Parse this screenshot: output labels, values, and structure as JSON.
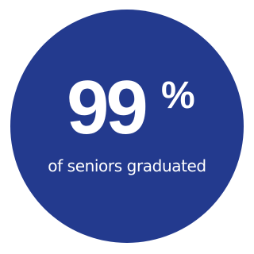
{
  "stat": {
    "number": "99",
    "symbol": "%",
    "caption": "of seniors graduated"
  },
  "colors": {
    "circle": "#233a8e",
    "text": "#ffffff",
    "background": "#ffffff"
  }
}
